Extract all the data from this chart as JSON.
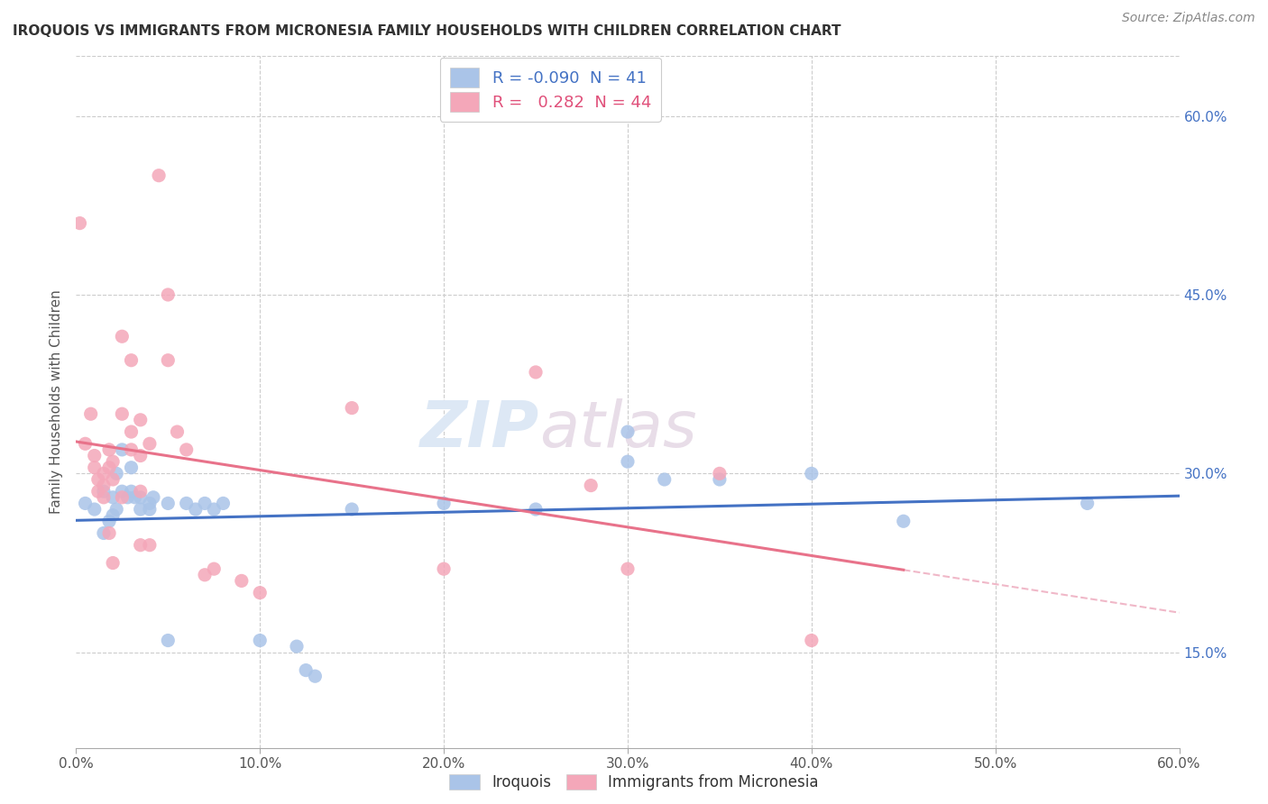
{
  "title": "IROQUOIS VS IMMIGRANTS FROM MICRONESIA FAMILY HOUSEHOLDS WITH CHILDREN CORRELATION CHART",
  "source": "Source: ZipAtlas.com",
  "ylabel": "Family Households with Children",
  "iroquois_R": "-0.090",
  "iroquois_N": "41",
  "micronesia_R": "0.282",
  "micronesia_N": "44",
  "iroquois_color": "#aac4e8",
  "micronesia_color": "#f4a7b9",
  "iroquois_line_color": "#4472c4",
  "micronesia_line_color": "#e8728a",
  "micronesia_dashed_color": "#f0b8c8",
  "watermark_zip": "ZIP",
  "watermark_atlas": "atlas",
  "iroquois_points": [
    [
      0.5,
      27.5
    ],
    [
      1.0,
      27.0
    ],
    [
      1.5,
      25.0
    ],
    [
      1.5,
      28.5
    ],
    [
      1.8,
      26.0
    ],
    [
      2.0,
      28.0
    ],
    [
      2.0,
      26.5
    ],
    [
      2.2,
      30.0
    ],
    [
      2.2,
      27.0
    ],
    [
      2.5,
      32.0
    ],
    [
      2.5,
      28.5
    ],
    [
      2.8,
      28.0
    ],
    [
      3.0,
      28.5
    ],
    [
      3.0,
      30.5
    ],
    [
      3.2,
      28.0
    ],
    [
      3.5,
      27.0
    ],
    [
      3.5,
      28.0
    ],
    [
      4.0,
      27.5
    ],
    [
      4.0,
      27.0
    ],
    [
      4.2,
      28.0
    ],
    [
      5.0,
      27.5
    ],
    [
      5.0,
      16.0
    ],
    [
      6.0,
      27.5
    ],
    [
      6.5,
      27.0
    ],
    [
      7.0,
      27.5
    ],
    [
      7.5,
      27.0
    ],
    [
      8.0,
      27.5
    ],
    [
      10.0,
      16.0
    ],
    [
      12.0,
      15.5
    ],
    [
      12.5,
      13.5
    ],
    [
      13.0,
      13.0
    ],
    [
      15.0,
      27.0
    ],
    [
      20.0,
      27.5
    ],
    [
      25.0,
      27.0
    ],
    [
      30.0,
      33.5
    ],
    [
      30.0,
      31.0
    ],
    [
      32.0,
      29.5
    ],
    [
      35.0,
      29.5
    ],
    [
      40.0,
      30.0
    ],
    [
      45.0,
      26.0
    ],
    [
      55.0,
      27.5
    ]
  ],
  "micronesia_points": [
    [
      0.2,
      51.0
    ],
    [
      0.5,
      32.5
    ],
    [
      0.8,
      35.0
    ],
    [
      1.0,
      31.5
    ],
    [
      1.0,
      30.5
    ],
    [
      1.2,
      29.5
    ],
    [
      1.2,
      28.5
    ],
    [
      1.5,
      30.0
    ],
    [
      1.5,
      29.0
    ],
    [
      1.5,
      28.0
    ],
    [
      1.8,
      32.0
    ],
    [
      1.8,
      30.5
    ],
    [
      1.8,
      25.0
    ],
    [
      2.0,
      31.0
    ],
    [
      2.0,
      29.5
    ],
    [
      2.0,
      22.5
    ],
    [
      2.5,
      41.5
    ],
    [
      2.5,
      35.0
    ],
    [
      2.5,
      28.0
    ],
    [
      3.0,
      39.5
    ],
    [
      3.0,
      33.5
    ],
    [
      3.0,
      32.0
    ],
    [
      3.5,
      34.5
    ],
    [
      3.5,
      31.5
    ],
    [
      3.5,
      28.5
    ],
    [
      3.5,
      24.0
    ],
    [
      4.0,
      32.5
    ],
    [
      4.0,
      24.0
    ],
    [
      4.5,
      55.0
    ],
    [
      5.0,
      45.0
    ],
    [
      5.0,
      39.5
    ],
    [
      5.5,
      33.5
    ],
    [
      6.0,
      32.0
    ],
    [
      7.0,
      21.5
    ],
    [
      7.5,
      22.0
    ],
    [
      9.0,
      21.0
    ],
    [
      10.0,
      20.0
    ],
    [
      15.0,
      35.5
    ],
    [
      20.0,
      22.0
    ],
    [
      25.0,
      38.5
    ],
    [
      28.0,
      29.0
    ],
    [
      30.0,
      22.0
    ],
    [
      35.0,
      30.0
    ],
    [
      40.0,
      16.0
    ]
  ],
  "xlim": [
    0,
    60
  ],
  "ylim": [
    7,
    65
  ],
  "xpct_ticks": [
    0,
    10,
    20,
    30,
    40,
    50,
    60
  ],
  "ypct_ticks": [
    15,
    30,
    45,
    60
  ],
  "legend_label_iroquois": "R = -0.090  N = 41",
  "legend_label_micronesia": "R =   0.282  N = 44"
}
